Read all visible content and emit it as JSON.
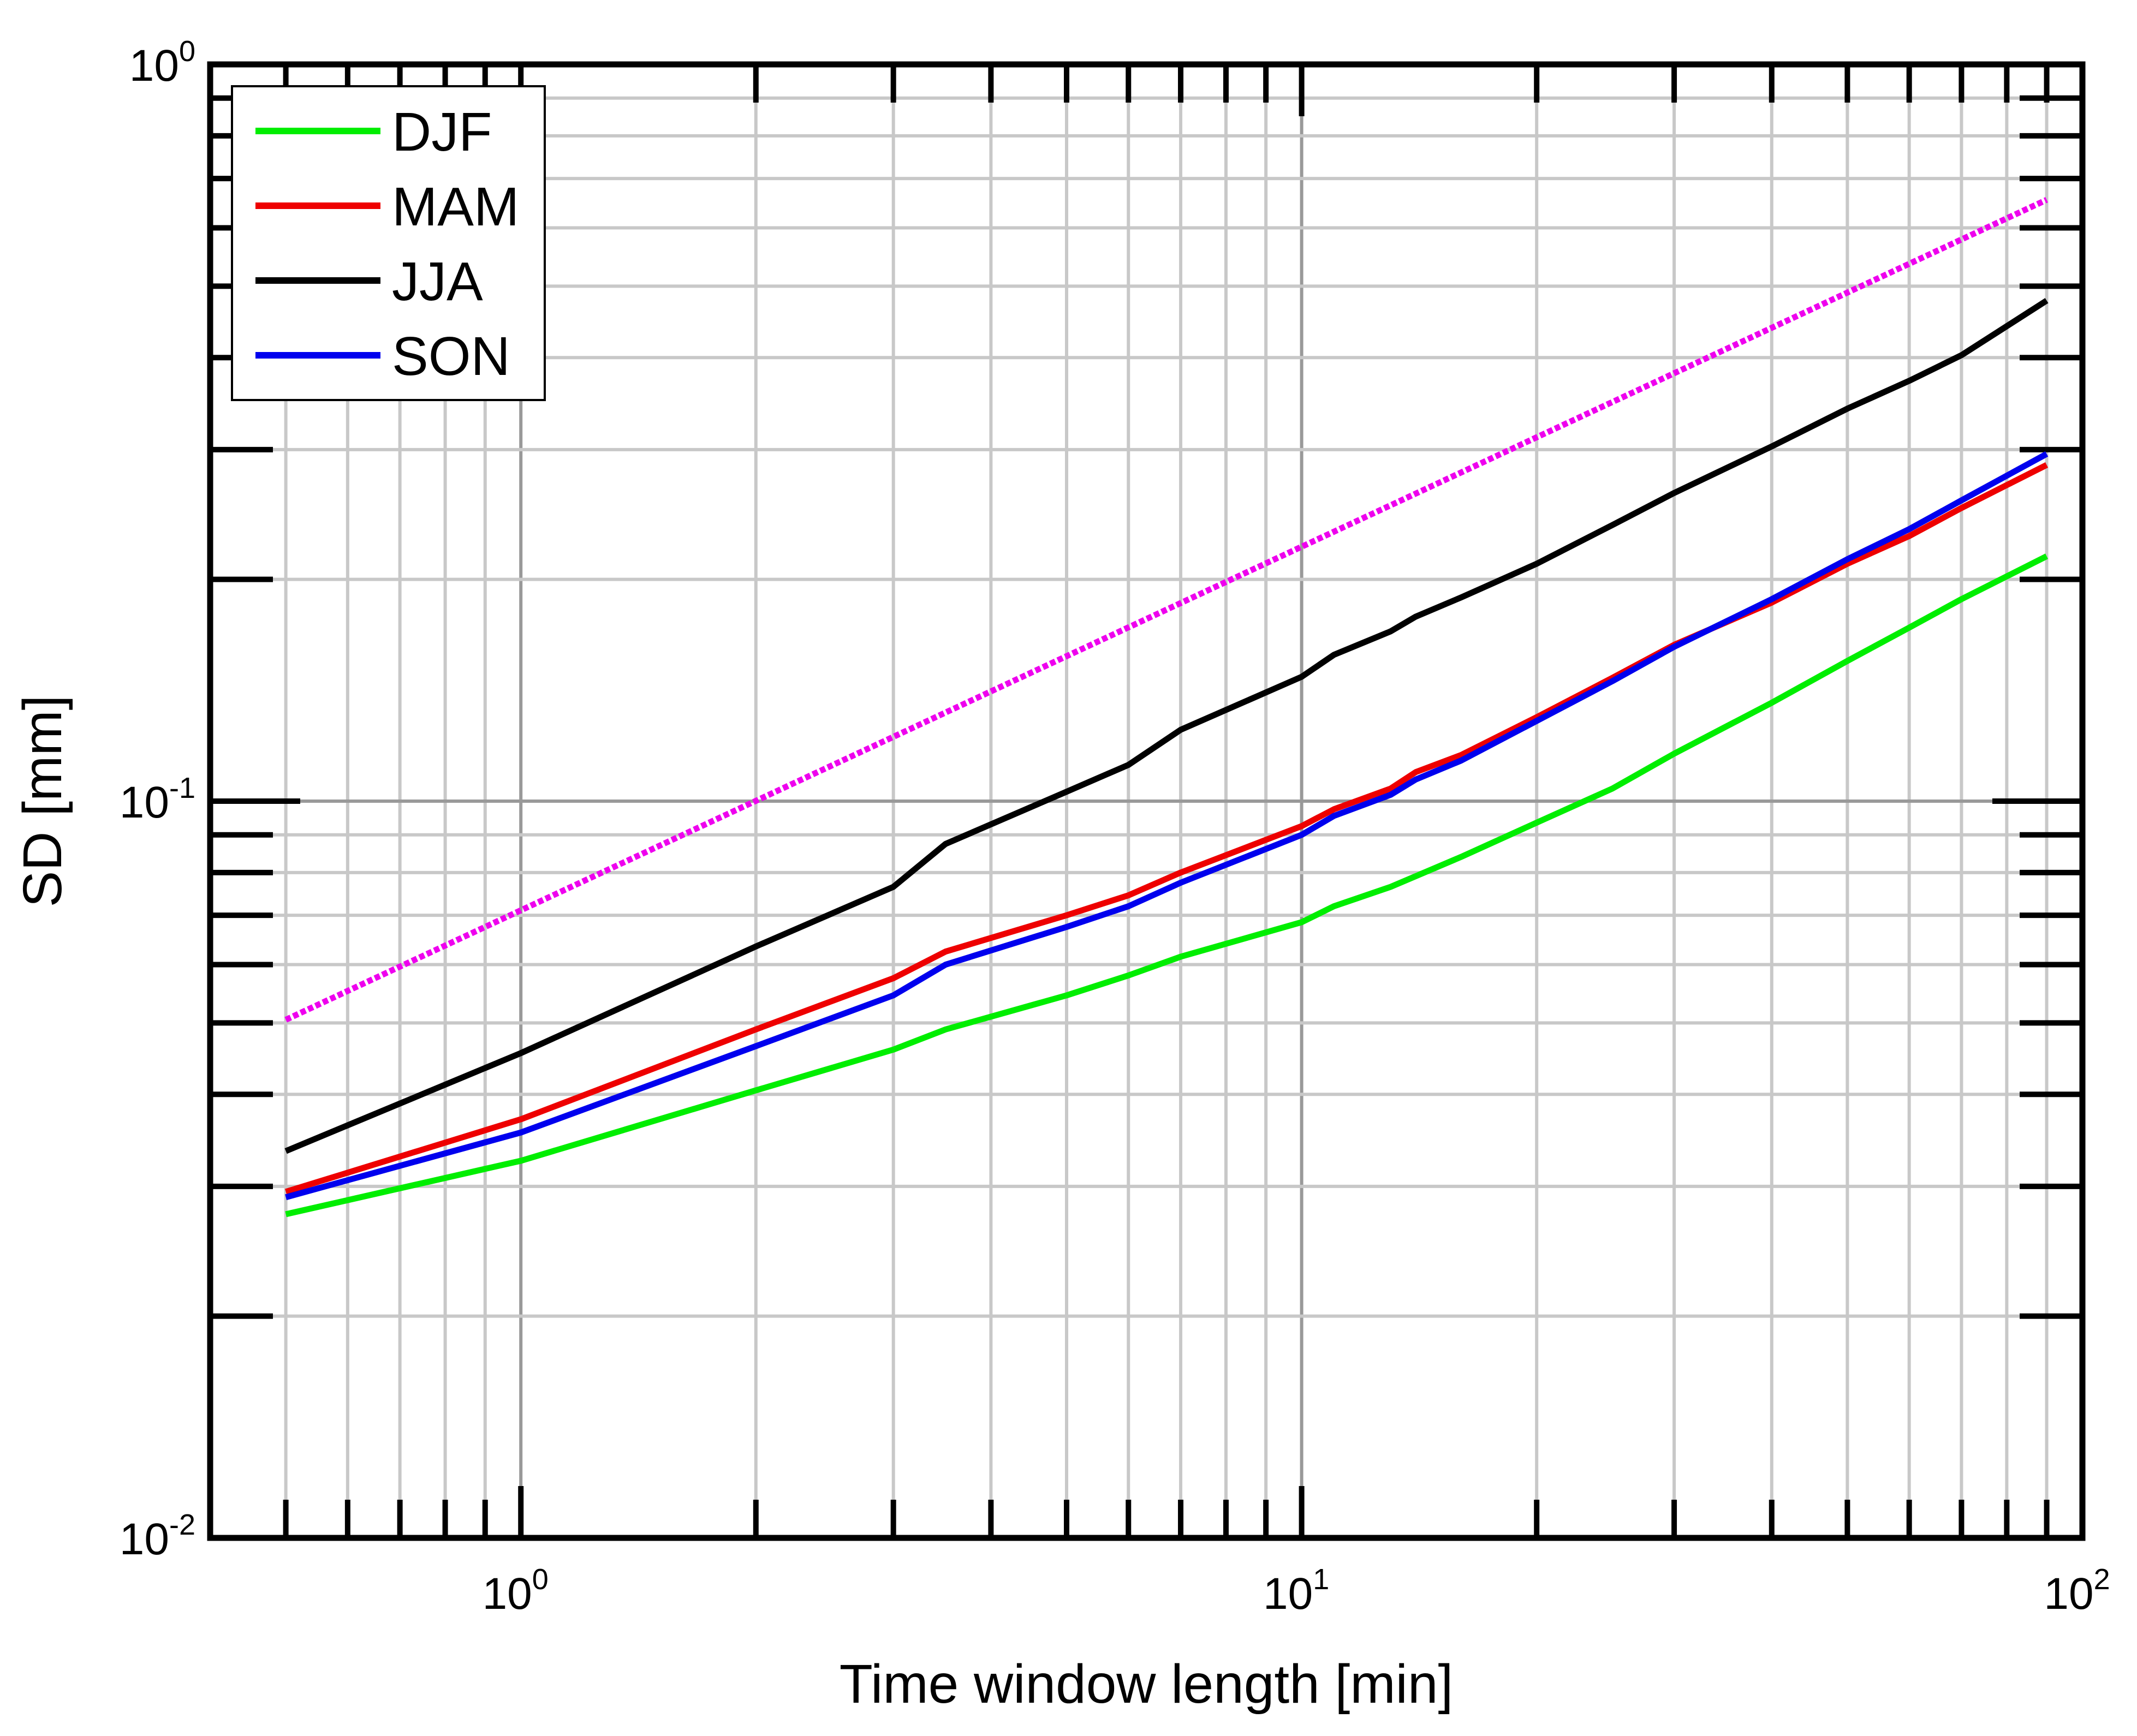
{
  "chart_data": {
    "type": "line",
    "xscale": "log",
    "yscale": "log",
    "xlim": [
      0.4,
      100
    ],
    "ylim": [
      0.01,
      1
    ],
    "grid": true,
    "xlabel": "Time window length [min]",
    "ylabel": "SD [mm]",
    "xticks": [
      {
        "base": "10",
        "exp": "0",
        "value": 1
      },
      {
        "base": "10",
        "exp": "1",
        "value": 10
      },
      {
        "base": "10",
        "exp": "2",
        "value": 100
      }
    ],
    "yticks": [
      {
        "base": "10",
        "exp": "-2",
        "value": 0.01
      },
      {
        "base": "10",
        "exp": "-1",
        "value": 0.1
      },
      {
        "base": "10",
        "exp": "0",
        "value": 1
      }
    ],
    "legend": {
      "position": "top-left"
    },
    "series": [
      {
        "name": "DJF",
        "color": "#00ee00",
        "x": [
          0.5,
          1,
          2,
          3,
          3.5,
          5,
          6,
          7,
          10,
          11,
          13,
          16,
          20,
          25,
          30,
          40,
          50,
          60,
          70,
          90
        ],
        "y": [
          0.0275,
          0.0325,
          0.0405,
          0.046,
          0.049,
          0.0545,
          0.058,
          0.0615,
          0.0685,
          0.072,
          0.0765,
          0.084,
          0.0935,
          0.104,
          0.116,
          0.136,
          0.155,
          0.172,
          0.188,
          0.215
        ]
      },
      {
        "name": "MAM",
        "color": "#ee0000",
        "x": [
          0.5,
          1,
          2,
          3,
          3.5,
          5,
          6,
          7,
          10,
          11,
          13,
          14,
          16,
          20,
          25,
          30,
          40,
          50,
          60,
          70,
          90
        ],
        "y": [
          0.0295,
          0.037,
          0.049,
          0.0575,
          0.0625,
          0.07,
          0.0745,
          0.08,
          0.0925,
          0.0975,
          0.104,
          0.1095,
          0.1155,
          0.13,
          0.147,
          0.163,
          0.186,
          0.21,
          0.229,
          0.25,
          0.286
        ]
      },
      {
        "name": "JJA",
        "color": "#000000",
        "x": [
          0.5,
          1,
          2,
          3,
          3.5,
          5,
          6,
          7,
          10,
          11,
          13,
          14,
          16,
          20,
          25,
          30,
          40,
          50,
          60,
          70,
          90
        ],
        "y": [
          0.0335,
          0.0455,
          0.0635,
          0.0765,
          0.0875,
          0.103,
          0.112,
          0.125,
          0.1475,
          0.158,
          0.17,
          0.178,
          0.189,
          0.21,
          0.237,
          0.262,
          0.303,
          0.341,
          0.372,
          0.403,
          0.478
        ]
      },
      {
        "name": "SON",
        "color": "#0000ee",
        "x": [
          0.5,
          1,
          2,
          3,
          3.5,
          5,
          6,
          7,
          10,
          11,
          13,
          14,
          16,
          20,
          25,
          30,
          40,
          50,
          60,
          70,
          90
        ],
        "y": [
          0.029,
          0.0355,
          0.0465,
          0.0545,
          0.06,
          0.0675,
          0.072,
          0.0775,
          0.09,
          0.0955,
          0.102,
          0.107,
          0.1135,
          0.1285,
          0.1455,
          0.162,
          0.188,
          0.213,
          0.234,
          0.256,
          0.296
        ]
      }
    ],
    "reference_line": {
      "color": "#ee00ee",
      "style": "dotted",
      "x": [
        0.5,
        90
      ],
      "y": [
        0.0505,
        0.655
      ]
    }
  }
}
